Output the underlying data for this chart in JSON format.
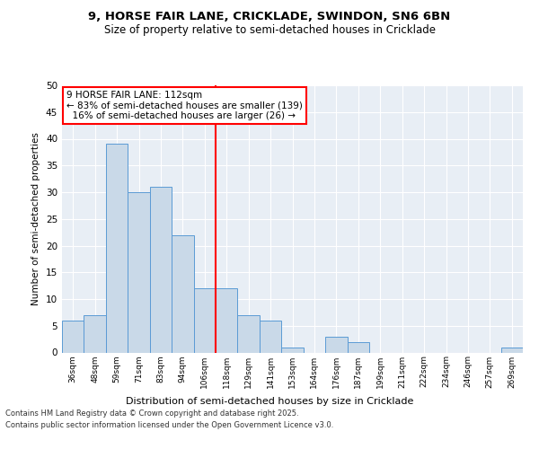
{
  "title1": "9, HORSE FAIR LANE, CRICKLADE, SWINDON, SN6 6BN",
  "title2": "Size of property relative to semi-detached houses in Cricklade",
  "xlabel": "Distribution of semi-detached houses by size in Cricklade",
  "ylabel": "Number of semi-detached properties",
  "categories": [
    "36sqm",
    "48sqm",
    "59sqm",
    "71sqm",
    "83sqm",
    "94sqm",
    "106sqm",
    "118sqm",
    "129sqm",
    "141sqm",
    "153sqm",
    "164sqm",
    "176sqm",
    "187sqm",
    "199sqm",
    "211sqm",
    "222sqm",
    "234sqm",
    "246sqm",
    "257sqm",
    "269sqm"
  ],
  "values": [
    6,
    7,
    39,
    30,
    31,
    22,
    12,
    12,
    7,
    6,
    1,
    0,
    3,
    2,
    0,
    0,
    0,
    0,
    0,
    0,
    1
  ],
  "bar_color": "#c9d9e8",
  "bar_edge_color": "#5b9bd5",
  "property_bin_index": 7,
  "redline_label": "9 HORSE FAIR LANE: 112sqm",
  "pct_smaller": 83,
  "count_smaller": 139,
  "pct_larger": 16,
  "count_larger": 26,
  "ylim": [
    0,
    50
  ],
  "yticks": [
    0,
    5,
    10,
    15,
    20,
    25,
    30,
    35,
    40,
    45,
    50
  ],
  "bg_color": "#e8eef5",
  "footer1": "Contains HM Land Registry data © Crown copyright and database right 2025.",
  "footer2": "Contains public sector information licensed under the Open Government Licence v3.0."
}
